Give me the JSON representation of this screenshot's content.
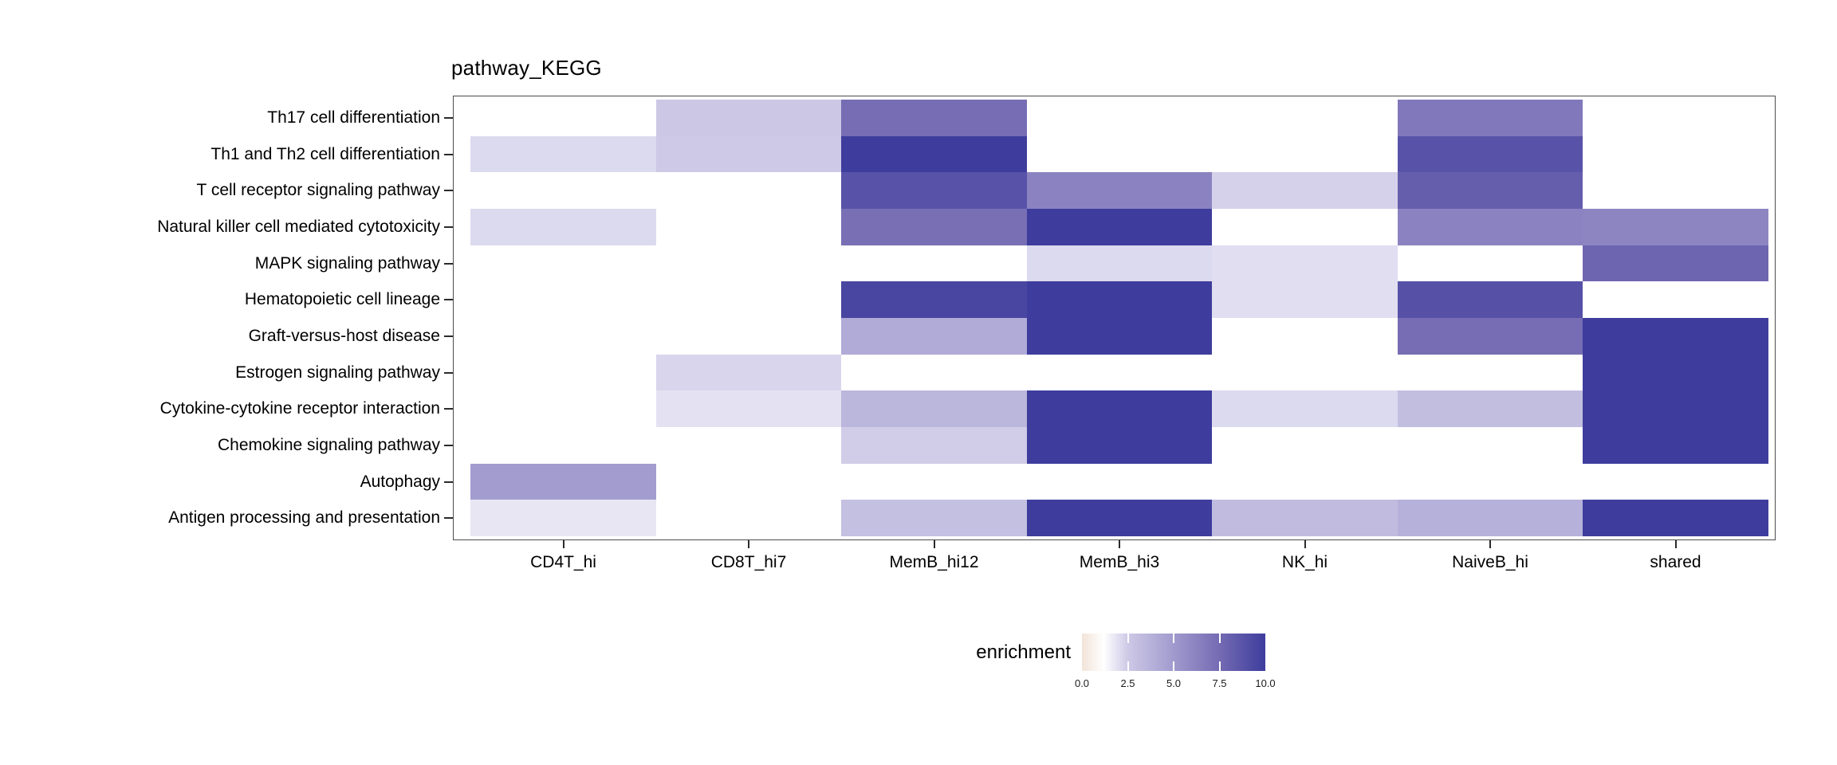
{
  "page": {
    "background": "#ffffff"
  },
  "chart_data": {
    "type": "heatmap",
    "title": "pathway_KEGG",
    "x_categories": [
      "CD4T_hi",
      "CD8T_hi7",
      "MemB_hi12",
      "MemB_hi3",
      "NK_hi",
      "NaiveB_hi",
      "shared"
    ],
    "y_categories": [
      "Th17 cell differentiation",
      "Th1 and Th2 cell differentiation",
      "T cell receptor signaling pathway",
      "Natural killer cell mediated cytotoxicity",
      "MAPK signaling pathway",
      "Hematopoietic cell lineage",
      "Graft-versus-host disease",
      "Estrogen signaling pathway",
      "Cytokine-cytokine receptor interaction",
      "Chemokine signaling pathway",
      "Autophagy",
      "Antigen processing and presentation"
    ],
    "values": [
      [
        null,
        2.6,
        7.4,
        null,
        null,
        6.8,
        null
      ],
      [
        2.1,
        2.5,
        10,
        null,
        null,
        8.8,
        null
      ],
      [
        null,
        null,
        8.8,
        6.2,
        2.3,
        8.2,
        null
      ],
      [
        2.1,
        null,
        7.3,
        10,
        null,
        6.2,
        6.1
      ],
      [
        null,
        null,
        null,
        2.1,
        2.0,
        null,
        7.8
      ],
      [
        null,
        null,
        9.5,
        10,
        2.0,
        8.9,
        null
      ],
      [
        null,
        null,
        4.1,
        10,
        null,
        7.4,
        10
      ],
      [
        null,
        2.2,
        null,
        null,
        null,
        null,
        10
      ],
      [
        null,
        1.9,
        3.5,
        10,
        2.1,
        3.1,
        10
      ],
      [
        null,
        null,
        2.4,
        10,
        null,
        null,
        10
      ],
      [
        4.9,
        null,
        null,
        null,
        null,
        null,
        null
      ],
      [
        1.8,
        null,
        3.0,
        10,
        3.2,
        3.8,
        10
      ]
    ],
    "value_range": [
      0,
      10
    ],
    "missing_color": "#ffffff",
    "grid": false,
    "panel_border_color": "#4d4d4d",
    "color_scale": {
      "stops": [
        {
          "value": 0.0,
          "color": "#f2e4d9"
        },
        {
          "value": 1.2,
          "color": "#ffffff"
        },
        {
          "value": 2.5,
          "color": "#cdc9e6"
        },
        {
          "value": 5.0,
          "color": "#a19ace"
        },
        {
          "value": 7.5,
          "color": "#746bb3"
        },
        {
          "value": 10.0,
          "color": "#3e3d9d"
        }
      ]
    },
    "legend": {
      "title": "enrichment",
      "tick_labels": [
        "0.0",
        "2.5",
        "5.0",
        "7.5",
        "10.0"
      ],
      "tick_values": [
        0,
        2.5,
        5,
        7.5,
        10
      ],
      "position": "bottom-center"
    }
  }
}
